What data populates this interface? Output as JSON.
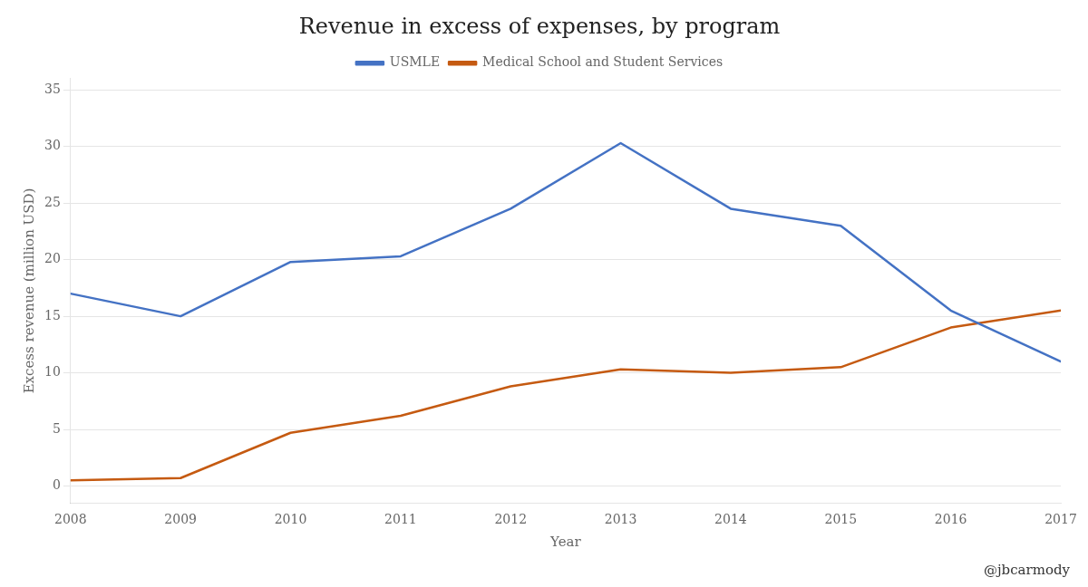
{
  "chart_data": {
    "type": "line",
    "title": "Revenue in excess of expenses, by program",
    "xlabel": "Year",
    "ylabel": "Excess revenue (million USD)",
    "x": [
      2008,
      2009,
      2010,
      2011,
      2012,
      2013,
      2014,
      2015,
      2016,
      2017
    ],
    "series": [
      {
        "name": "USMLE",
        "color": "#4472C4",
        "values": [
          17,
          15,
          19.8,
          20.3,
          24.5,
          30.3,
          24.5,
          23,
          15.5,
          11
        ]
      },
      {
        "name": "Medical School and Student Services",
        "color": "#C55A11",
        "values": [
          0.5,
          0.7,
          4.7,
          6.2,
          8.8,
          10.3,
          10,
          10.5,
          14,
          15.5
        ]
      }
    ],
    "xlim": [
      2008,
      2017
    ],
    "xticks": [
      2008,
      2009,
      2010,
      2011,
      2012,
      2013,
      2014,
      2015,
      2016,
      2017
    ],
    "ylim": [
      -1.5,
      36
    ],
    "yticks": [
      0,
      5,
      10,
      15,
      20,
      25,
      30,
      35
    ],
    "grid": true,
    "legend": "top",
    "annotations": [
      "@jbcarmody"
    ]
  }
}
